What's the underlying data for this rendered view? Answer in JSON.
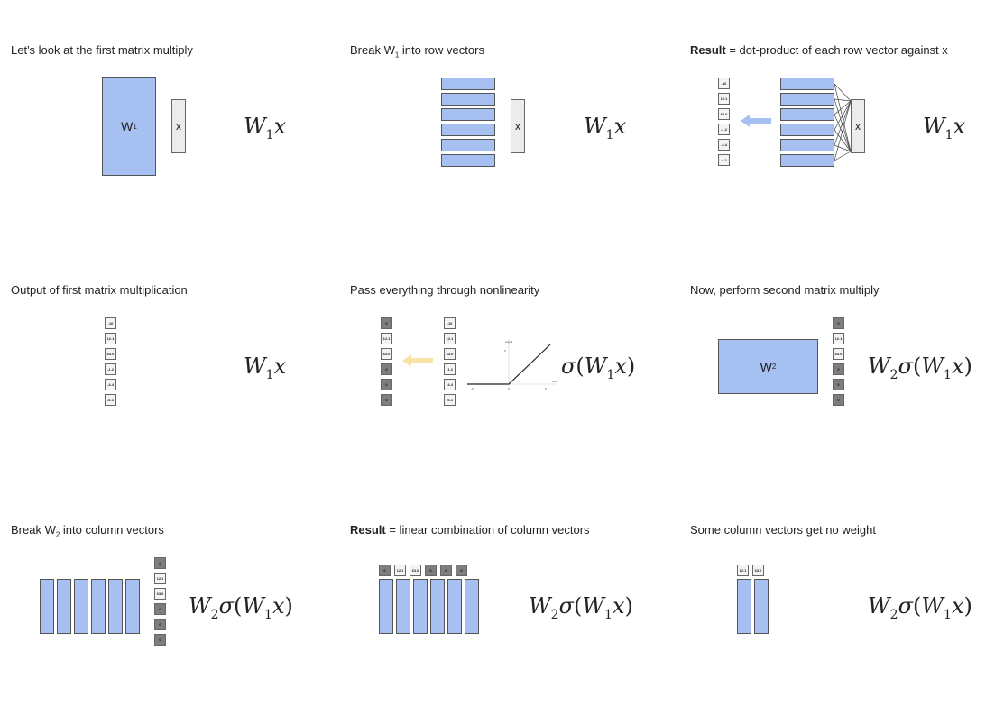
{
  "panels": {
    "p1": {
      "caption": "Let's look at the first matrix multiply",
      "matrix": "W",
      "matrix_sub": "1",
      "x": "x"
    },
    "p2": {
      "caption_a": "Break W",
      "caption_sub": "1",
      "caption_b": " into row vectors",
      "x": "x"
    },
    "p3": {
      "caption_bold": "Result",
      "caption_rest": " = dot-product of each row vector against x",
      "x": "x",
      "values": [
        "-10",
        "12.1",
        "63.0",
        "-1.2",
        "-4.4",
        "-6.1"
      ]
    },
    "p4": {
      "caption": "Output of first matrix multiplication",
      "values": [
        "-10",
        "12.1",
        "63.0",
        "-1.2",
        "-4.4",
        "-6.1"
      ]
    },
    "p5": {
      "caption": "Pass everything through nonlinearity",
      "relu_values": [
        "0",
        "12.1",
        "63.0",
        "0",
        "0",
        "0"
      ],
      "values": [
        "-10",
        "12.1",
        "63.0",
        "-1.2",
        "-4.4",
        "-6.1"
      ],
      "plot_ylabel": "output",
      "plot_xlabel": "input",
      "plot_ticks_x": [
        "-5",
        "0",
        "5"
      ],
      "plot_tick_y": "5"
    },
    "p6": {
      "caption": "Now, perform second matrix multiply",
      "matrix": "W",
      "matrix_sub": "2",
      "values": [
        "0",
        "12.1",
        "63.0",
        "0",
        "0",
        "0"
      ]
    },
    "p7": {
      "caption_a": "Break W",
      "caption_sub": "2",
      "caption_b": " into column vectors",
      "values": [
        "0",
        "12.1",
        "63.0",
        "0",
        "0",
        "0"
      ]
    },
    "p8": {
      "caption_bold": "Result",
      "caption_rest": " = linear combination of column vectors",
      "values": [
        "0",
        "12.1",
        "63.0",
        "0",
        "0",
        "0"
      ]
    },
    "p9": {
      "caption": "Some column vectors get no weight",
      "values": [
        "12.1",
        "63.0"
      ]
    }
  },
  "formulas": {
    "w1x": {
      "W": "W",
      "sub": "1",
      "x": "x"
    },
    "w2": {
      "W": "W",
      "sub": "2",
      "sigma": "σ",
      "lp": "(",
      "rp": ")"
    }
  },
  "colors": {
    "matrix_fill": "#a7c0f2",
    "arrow_blue": "#a7c0f2",
    "arrow_yellow": "#f8e4a6",
    "relu_cell": "#7e7e7e"
  }
}
